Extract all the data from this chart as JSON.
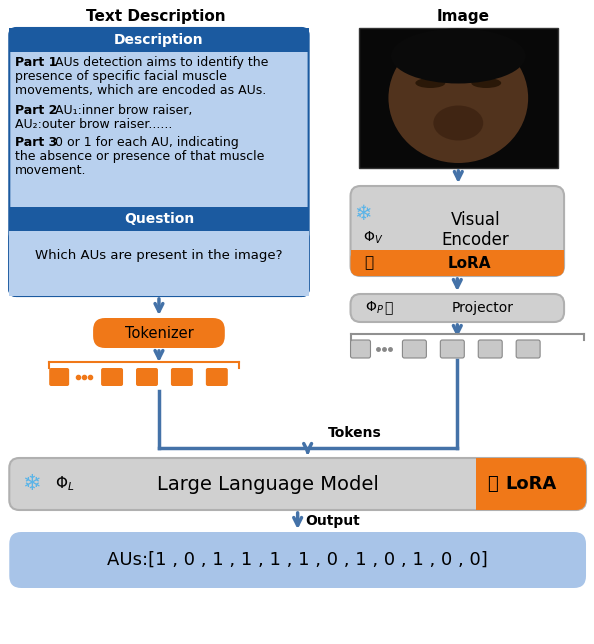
{
  "title_left": "Text Description",
  "title_right": "Image",
  "desc_header": "Description",
  "question_header": "Question",
  "question_text": "Which AUs are present in the image?",
  "tokenizer_label": "Tokenizer",
  "tokens_label": "Tokens",
  "lora_label": "LoRA",
  "llm_label": "Large Language Model",
  "output_label": "Output",
  "output_text": "AUs:[1 , 0 , 1 , 1 , 1 , 1 , 0 , 1 , 0 , 1 , 0 , 0]",
  "color_blue_dark": "#1b5aa0",
  "color_blue_lighter": "#b8d0ee",
  "color_orange": "#f07818",
  "color_gray_box": "#d0d0d0",
  "color_gray_border": "#b0b0b0",
  "color_white": "#ffffff",
  "color_black": "#000000",
  "color_output_bg": "#a8c4e8",
  "color_snowflake": "#5ab4e8",
  "color_arrow": "#4472a8",
  "figsize": [
    5.94,
    6.44
  ],
  "dpi": 100
}
